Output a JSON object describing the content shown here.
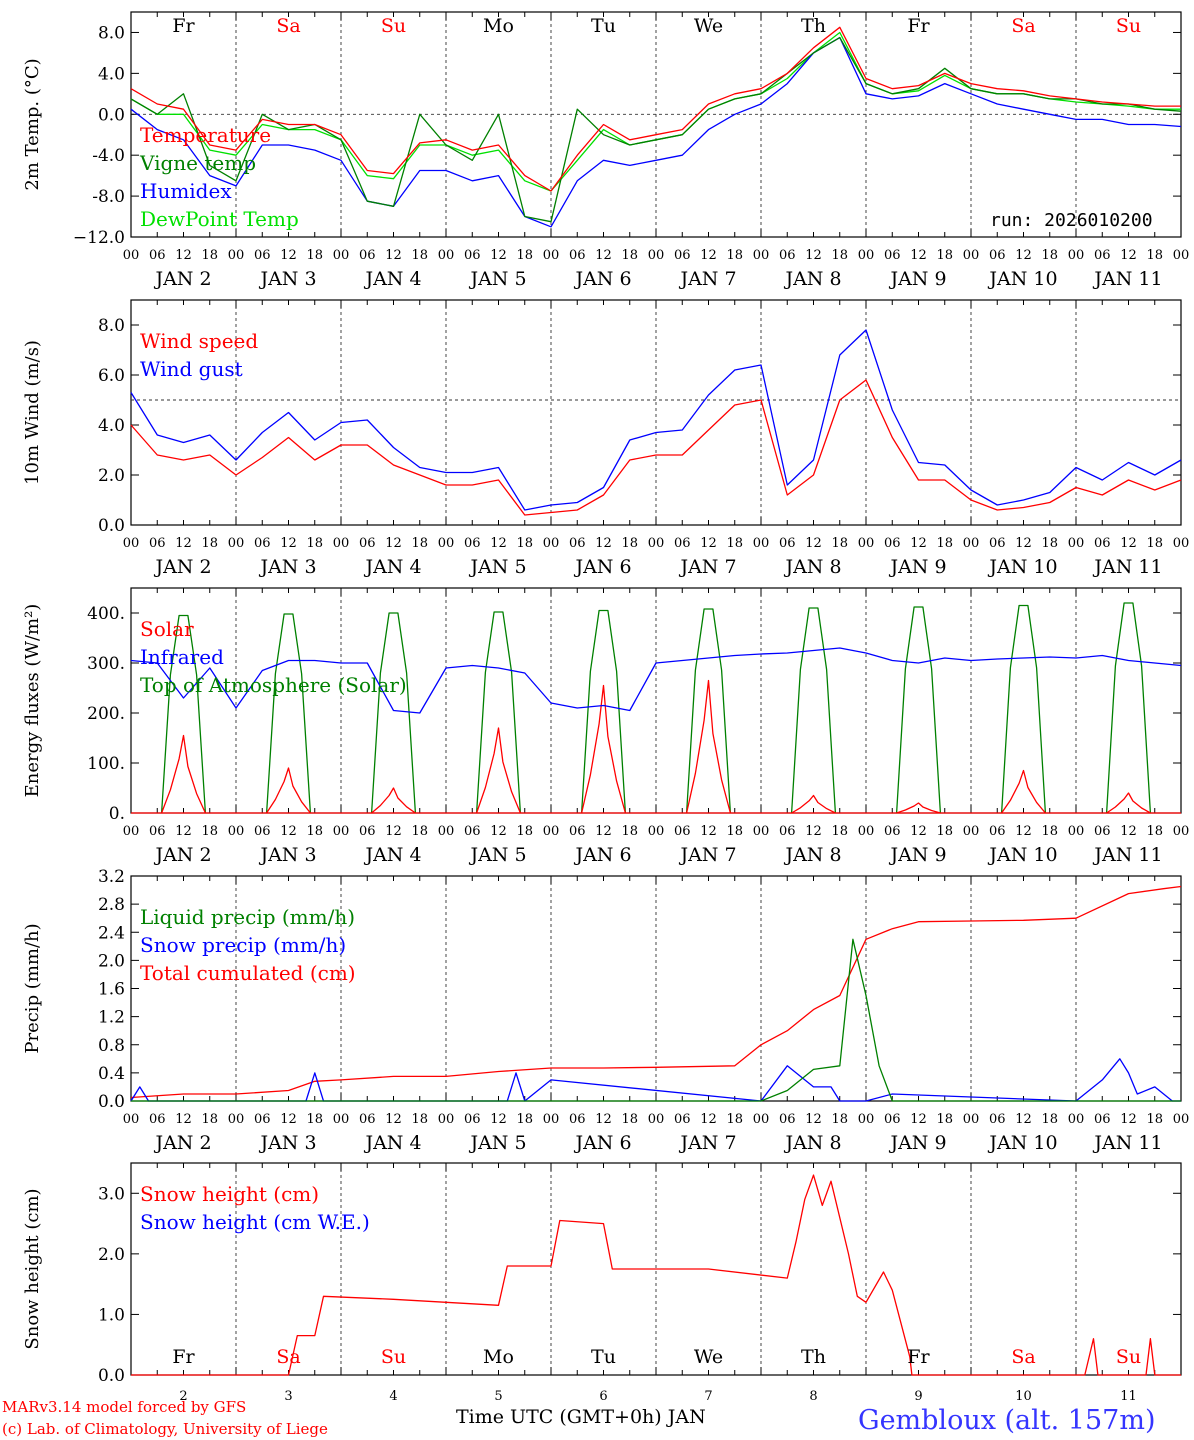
{
  "run_label": "run: 2026010200",
  "footer": {
    "credit1": "MARv3.14 model forced by GFS",
    "credit2": "(c) Lab. of Climatology, University of Liege",
    "xlabel": "Time UTC (GMT+0h) JAN",
    "station": "Gembloux (alt. 157m)"
  },
  "days": {
    "names": [
      "Fr",
      "Sa",
      "Su",
      "Mo",
      "Tu",
      "We",
      "Th",
      "Fr",
      "Sa",
      "Su"
    ],
    "weekend": [
      false,
      true,
      true,
      false,
      false,
      false,
      false,
      false,
      true,
      true
    ],
    "date_labels": [
      "JAN  2",
      "JAN  3",
      "JAN  4",
      "JAN  5",
      "JAN  6",
      "JAN  7",
      "JAN  8",
      "JAN  9",
      "JAN 10",
      "JAN 11"
    ],
    "day_numbers": [
      "2",
      "3",
      "4",
      "5",
      "6",
      "7",
      "8",
      "9",
      "10",
      "11"
    ],
    "hour_ticks": [
      "00",
      "06",
      "12",
      "18"
    ],
    "end_tick": "00"
  },
  "colors": {
    "red": "#ff0000",
    "green": "#008000",
    "blue": "#0000ff",
    "lime": "#00e000",
    "grid": "#555555"
  },
  "chart_data": [
    {
      "id": "temp",
      "type": "line",
      "ylabel": "2m Temp. (°C)",
      "ylim": [
        -12,
        10
      ],
      "yticks": [
        8.0,
        4.0,
        0.0,
        -4.0,
        -8.0,
        -12.0
      ],
      "ytick_labels": [
        "8.0",
        "4.0",
        "0.0",
        "-4.0",
        "-8.0",
        "−12.0"
      ],
      "refline": 0,
      "legend": [
        "Temperature",
        "Vigne temp",
        "Humidex",
        "DewPoint Temp"
      ],
      "series": [
        {
          "name": "Temperature",
          "color": "red",
          "x": [
            0,
            6,
            12,
            18,
            24,
            30,
            36,
            42,
            48,
            54,
            60,
            66,
            72,
            78,
            84,
            90,
            96,
            102,
            108,
            114,
            120,
            126,
            132,
            138,
            144,
            150,
            156,
            162,
            168,
            174,
            180,
            186,
            192,
            198,
            204,
            210,
            216,
            222,
            228,
            234,
            240
          ],
          "y": [
            2.5,
            1.0,
            0.5,
            -3.0,
            -3.5,
            -0.5,
            -1.0,
            -1.0,
            -2.0,
            -5.5,
            -5.8,
            -2.8,
            -2.5,
            -3.5,
            -3.0,
            -6.0,
            -7.5,
            -4.0,
            -1.0,
            -2.5,
            -2.0,
            -1.5,
            1.0,
            2.0,
            2.5,
            4.0,
            6.5,
            8.5,
            3.5,
            2.5,
            2.8,
            4.0,
            3.0,
            2.5,
            2.3,
            1.8,
            1.5,
            1.2,
            1.0,
            0.8,
            0.8
          ]
        },
        {
          "name": "Vigne temp",
          "color": "green",
          "x": [
            0,
            6,
            12,
            18,
            24,
            30,
            36,
            42,
            48,
            54,
            60,
            66,
            72,
            78,
            84,
            90,
            96,
            102,
            108,
            114,
            120,
            126,
            132,
            138,
            144,
            150,
            156,
            162,
            168,
            174,
            180,
            186,
            192,
            198,
            204,
            210,
            216,
            222,
            228,
            234,
            240
          ],
          "y": [
            1.5,
            0.0,
            2.0,
            -5.0,
            -6.5,
            0.0,
            -1.5,
            -1.0,
            -2.5,
            -8.5,
            -9.0,
            0.0,
            -3.0,
            -4.5,
            0.0,
            -10.0,
            -10.5,
            0.5,
            -2.0,
            -3.0,
            -2.5,
            -2.0,
            0.5,
            1.5,
            2.0,
            4.0,
            6.0,
            7.5,
            3.0,
            2.0,
            2.5,
            4.5,
            2.5,
            2.0,
            2.0,
            1.5,
            1.5,
            1.0,
            1.0,
            0.5,
            0.3
          ]
        },
        {
          "name": "Humidex",
          "color": "blue",
          "x": [
            0,
            6,
            12,
            18,
            24,
            30,
            36,
            42,
            48,
            54,
            60,
            66,
            72,
            78,
            84,
            90,
            96,
            102,
            108,
            114,
            120,
            126,
            132,
            138,
            144,
            150,
            156,
            162,
            168,
            174,
            180,
            186,
            192,
            198,
            204,
            210,
            216,
            222,
            228,
            234,
            240
          ],
          "y": [
            0.5,
            -1.5,
            -2.5,
            -6.0,
            -7.0,
            -3.0,
            -3.0,
            -3.5,
            -4.5,
            -8.5,
            -9.0,
            -5.5,
            -5.5,
            -6.5,
            -6.0,
            -10.0,
            -11.0,
            -6.5,
            -4.5,
            -5.0,
            -4.5,
            -4.0,
            -1.5,
            0.0,
            1.0,
            3.0,
            6.0,
            7.5,
            2.0,
            1.5,
            1.8,
            3.0,
            2.0,
            1.0,
            0.5,
            0.0,
            -0.5,
            -0.5,
            -1.0,
            -1.0,
            -1.2
          ]
        },
        {
          "name": "DewPoint Temp",
          "color": "lime",
          "x": [
            0,
            6,
            12,
            18,
            24,
            30,
            36,
            42,
            48,
            54,
            60,
            66,
            72,
            78,
            84,
            90,
            96,
            102,
            108,
            114,
            120,
            126,
            132,
            138,
            144,
            150,
            156,
            162,
            168,
            174,
            180,
            186,
            192,
            198,
            204,
            210,
            216,
            222,
            228,
            234,
            240
          ],
          "y": [
            1.5,
            0.0,
            0.0,
            -3.5,
            -4.0,
            -1.0,
            -1.5,
            -1.5,
            -2.5,
            -6.0,
            -6.3,
            -3.0,
            -3.0,
            -4.0,
            -3.5,
            -6.5,
            -7.5,
            -4.5,
            -1.5,
            -3.0,
            -2.5,
            -2.0,
            0.5,
            1.5,
            2.0,
            3.5,
            6.0,
            8.0,
            3.0,
            2.0,
            2.3,
            3.8,
            2.5,
            2.0,
            2.0,
            1.5,
            1.2,
            1.0,
            0.8,
            0.5,
            0.5
          ]
        }
      ]
    },
    {
      "id": "wind",
      "type": "line",
      "ylabel": "10m Wind (m/s)",
      "ylim": [
        0,
        9
      ],
      "yticks": [
        0.0,
        2.0,
        4.0,
        6.0,
        8.0
      ],
      "ytick_labels": [
        "0.0",
        "2.0",
        "4.0",
        "6.0",
        "8.0"
      ],
      "refline": 5,
      "legend": [
        "Wind speed",
        "Wind gust"
      ],
      "series": [
        {
          "name": "Wind speed",
          "color": "red",
          "x": [
            0,
            6,
            12,
            18,
            24,
            30,
            36,
            42,
            48,
            54,
            60,
            66,
            72,
            78,
            84,
            90,
            96,
            102,
            108,
            114,
            120,
            126,
            132,
            138,
            144,
            150,
            156,
            162,
            168,
            174,
            180,
            186,
            192,
            198,
            204,
            210,
            216,
            222,
            228,
            234,
            240
          ],
          "y": [
            4.0,
            2.8,
            2.6,
            2.8,
            2.0,
            2.7,
            3.5,
            2.6,
            3.2,
            3.2,
            2.4,
            2.0,
            1.6,
            1.6,
            1.8,
            0.4,
            0.5,
            0.6,
            1.2,
            2.6,
            2.8,
            2.8,
            3.8,
            4.8,
            5.0,
            1.2,
            2.0,
            5.0,
            5.8,
            3.5,
            1.8,
            1.8,
            1.0,
            0.6,
            0.7,
            0.9,
            1.5,
            1.2,
            1.8,
            1.4,
            1.8
          ]
        },
        {
          "name": "Wind gust",
          "color": "blue",
          "x": [
            0,
            6,
            12,
            18,
            24,
            30,
            36,
            42,
            48,
            54,
            60,
            66,
            72,
            78,
            84,
            90,
            96,
            102,
            108,
            114,
            120,
            126,
            132,
            138,
            144,
            150,
            156,
            162,
            168,
            174,
            180,
            186,
            192,
            198,
            204,
            210,
            216,
            222,
            228,
            234,
            240
          ],
          "y": [
            5.3,
            3.6,
            3.3,
            3.6,
            2.6,
            3.7,
            4.5,
            3.4,
            4.1,
            4.2,
            3.1,
            2.3,
            2.1,
            2.1,
            2.3,
            0.6,
            0.8,
            0.9,
            1.5,
            3.4,
            3.7,
            3.8,
            5.2,
            6.2,
            6.4,
            1.6,
            2.6,
            6.8,
            7.8,
            4.6,
            2.5,
            2.4,
            1.4,
            0.8,
            1.0,
            1.3,
            2.3,
            1.8,
            2.5,
            2.0,
            2.6
          ]
        }
      ]
    },
    {
      "id": "energy",
      "type": "line",
      "ylabel": "Energy fluxes (W/m²)",
      "ylim": [
        0,
        450
      ],
      "yticks": [
        0,
        100,
        200,
        300,
        400
      ],
      "ytick_labels": [
        "0.",
        "100.",
        "200.",
        "300.",
        "400."
      ],
      "legend": [
        "Solar",
        "Infrared",
        "Top of Atmosphere (Solar)"
      ],
      "solar_peaks": [
        155,
        90,
        50,
        170,
        255,
        265,
        35,
        20,
        85,
        40
      ],
      "toa_peaks": [
        395,
        398,
        400,
        402,
        405,
        408,
        410,
        412,
        415,
        420
      ],
      "series": [
        {
          "name": "Infrared",
          "color": "blue",
          "x": [
            0,
            6,
            12,
            18,
            24,
            30,
            36,
            42,
            48,
            54,
            60,
            66,
            72,
            78,
            84,
            90,
            96,
            102,
            108,
            114,
            120,
            126,
            132,
            138,
            144,
            150,
            156,
            162,
            168,
            174,
            180,
            186,
            192,
            198,
            204,
            210,
            216,
            222,
            228,
            234,
            240
          ],
          "y": [
            305,
            300,
            230,
            290,
            210,
            285,
            305,
            305,
            300,
            300,
            205,
            200,
            290,
            295,
            290,
            280,
            220,
            210,
            215,
            205,
            300,
            305,
            310,
            315,
            318,
            320,
            325,
            330,
            320,
            305,
            300,
            310,
            305,
            308,
            310,
            312,
            310,
            315,
            305,
            300,
            295
          ]
        }
      ]
    },
    {
      "id": "precip",
      "type": "line",
      "ylabel": "Precip (mm/h)",
      "ylim": [
        0,
        3.2
      ],
      "yticks": [
        0.0,
        0.4,
        0.8,
        1.2,
        1.6,
        2.0,
        2.4,
        2.8,
        3.2
      ],
      "ytick_labels": [
        "0.0",
        "0.4",
        "0.8",
        "1.2",
        "1.6",
        "2.0",
        "2.4",
        "2.8",
        "3.2"
      ],
      "legend": [
        "Liquid precip (mm/h)",
        "Snow precip (mm/h)",
        "Total cumulated (cm)"
      ],
      "series": [
        {
          "name": "Liquid precip (mm/h)",
          "color": "green",
          "x": [
            0,
            144,
            150,
            156,
            162,
            165,
            168,
            171,
            174,
            180,
            240
          ],
          "y": [
            0,
            0,
            0.15,
            0.45,
            0.5,
            2.3,
            1.5,
            0.5,
            0,
            0,
            0
          ]
        },
        {
          "name": "Snow precip (mm/h)",
          "color": "blue",
          "x": [
            0,
            2,
            4,
            40,
            42,
            44,
            86,
            88,
            90,
            96,
            144,
            150,
            156,
            160,
            162,
            168,
            174,
            216,
            222,
            226,
            228,
            230,
            234,
            238,
            240
          ],
          "y": [
            0,
            0.2,
            0,
            0,
            0.4,
            0,
            0,
            0.4,
            0,
            0.3,
            0,
            0.5,
            0.2,
            0.2,
            0,
            0,
            0.1,
            0,
            0.3,
            0.6,
            0.4,
            0.1,
            0.2,
            0,
            0
          ]
        },
        {
          "name": "Total cumulated (cm)",
          "color": "red",
          "x": [
            0,
            12,
            24,
            36,
            42,
            48,
            60,
            72,
            84,
            96,
            108,
            120,
            138,
            144,
            150,
            156,
            162,
            168,
            174,
            180,
            192,
            204,
            216,
            228,
            236,
            240
          ],
          "y": [
            0.05,
            0.1,
            0.1,
            0.15,
            0.28,
            0.3,
            0.35,
            0.35,
            0.42,
            0.47,
            0.47,
            0.48,
            0.5,
            0.8,
            1.0,
            1.3,
            1.5,
            2.3,
            2.45,
            2.55,
            2.56,
            2.57,
            2.6,
            2.95,
            3.02,
            3.05
          ]
        }
      ]
    },
    {
      "id": "snow",
      "type": "line",
      "ylabel": "Snow height (cm)",
      "ylim": [
        0,
        3.5
      ],
      "yticks": [
        0.0,
        1.0,
        2.0,
        3.0
      ],
      "ytick_labels": [
        "0.0",
        "1.0",
        "2.0",
        "3.0"
      ],
      "legend": [
        "Snow height (cm)",
        "Snow height (cm W.E.)"
      ],
      "series": [
        {
          "name": "Snow height (cm)",
          "color": "red",
          "x": [
            0,
            36,
            38,
            42,
            44,
            60,
            72,
            84,
            86,
            96,
            98,
            108,
            110,
            132,
            150,
            152,
            154,
            156,
            158,
            160,
            164,
            166,
            168,
            172,
            174,
            178,
            178.5,
            180,
            182,
            184,
            218,
            220,
            221,
            222,
            223,
            232,
            233,
            234,
            235,
            240
          ],
          "y": [
            0,
            0,
            0.65,
            0.65,
            1.3,
            1.25,
            1.2,
            1.15,
            1.8,
            1.8,
            2.55,
            2.5,
            1.75,
            1.75,
            1.6,
            2.2,
            2.9,
            3.3,
            2.8,
            3.2,
            2.0,
            1.3,
            1.2,
            1.7,
            1.4,
            0.3,
            0,
            0,
            0,
            0,
            0,
            0.6,
            0,
            0,
            0,
            0,
            0.6,
            0,
            0,
            0
          ]
        }
      ]
    }
  ]
}
